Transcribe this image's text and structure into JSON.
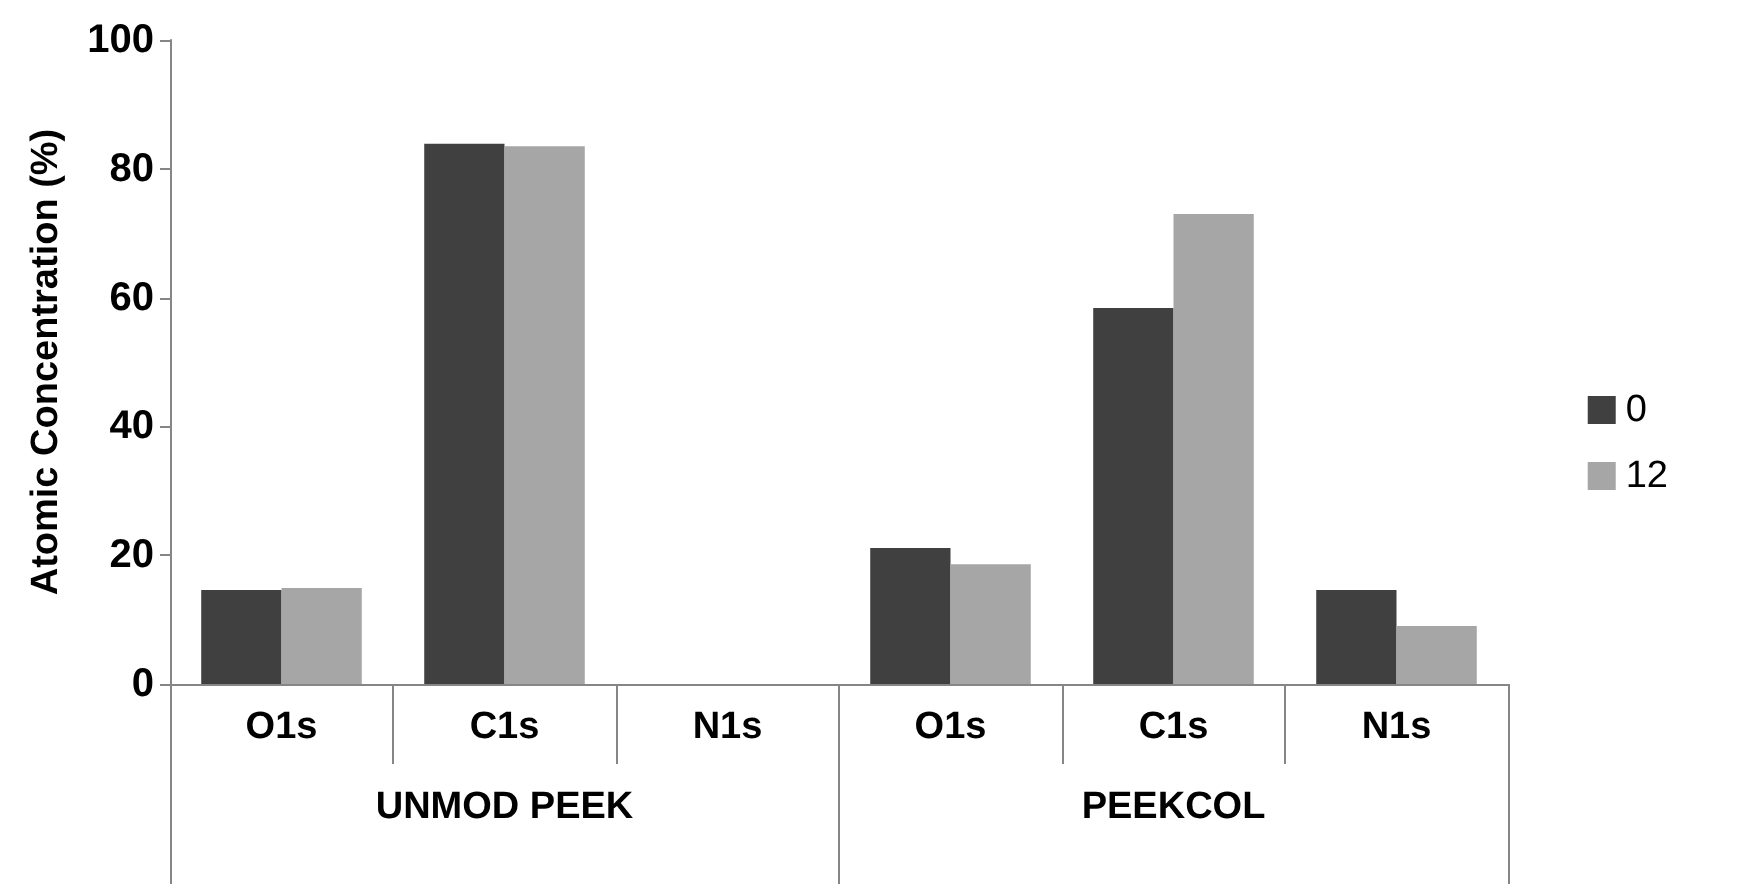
{
  "chart_data": {
    "type": "bar",
    "ylabel": "Atomic Concentration (%)",
    "categories": [
      "O1s",
      "C1s",
      "N1s",
      "O1s",
      "C1s",
      "N1s"
    ],
    "annotations": [
      "UNMOD PEEK",
      "PEEKCOL"
    ],
    "series": [
      {
        "name": "0",
        "color": "#404040",
        "values": [
          14.6,
          83.9,
          0,
          21.1,
          58.4,
          14.6
        ]
      },
      {
        "name": "12",
        "color": "#a6a6a6",
        "values": [
          14.9,
          83.5,
          0,
          18.6,
          73,
          9
        ]
      }
    ],
    "ylim": [
      0,
      100
    ],
    "yticks": [
      0,
      20,
      40,
      60,
      80,
      100
    ],
    "grid": false,
    "legend": "right"
  }
}
